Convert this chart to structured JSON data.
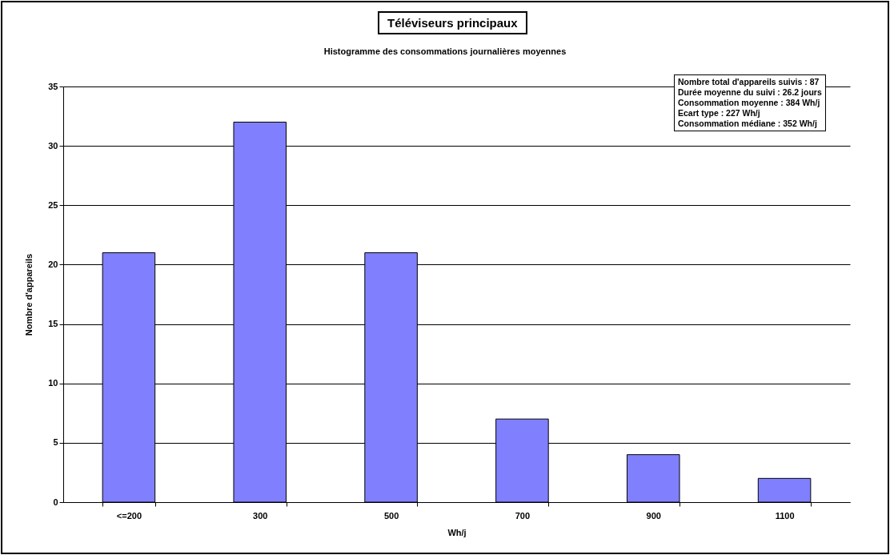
{
  "chart_data": {
    "type": "bar",
    "title": "Téléviseurs principaux",
    "subtitle": "Histogramme des consommations journalières moyennes",
    "xlabel": "Wh/j",
    "ylabel": "Nombre d'appareils",
    "categories": [
      "<=200",
      "300",
      "500",
      "700",
      "900",
      "1100"
    ],
    "values": [
      21,
      32,
      21,
      7,
      4,
      2
    ],
    "color": "#8080ff",
    "ylim": [
      0,
      35
    ],
    "yticks": [
      0,
      5,
      10,
      15,
      20,
      25,
      30,
      35
    ],
    "grid": "y",
    "annotations": [
      "Nombre total d'appareils suivis : 87",
      "Durée moyenne du suivi : 26.2 jours",
      "Consommation moyenne : 384 Wh/j",
      "Ecart type : 227 Wh/j",
      "Consommation médiane : 352 Wh/j"
    ]
  }
}
